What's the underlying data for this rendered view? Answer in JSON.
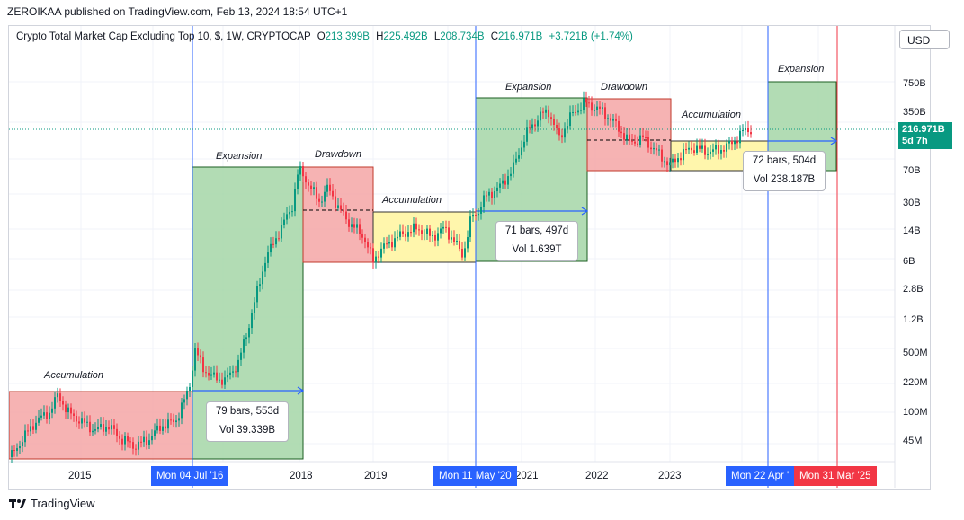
{
  "header": {
    "published": "ZEROIKAA published on TradingView.com, Feb 13, 2024 18:54 UTC+1"
  },
  "legend": {
    "title": "Crypto Total Market Cap Excluding Top 10, $, 1W, CRYPTOCAP",
    "o_label": "O",
    "o_value": "213.399B",
    "h_label": "H",
    "h_value": "225.492B",
    "l_label": "L",
    "l_value": "208.734B",
    "c_label": "C",
    "c_value": "216.971B",
    "change": "+3.721B (+1.74%)"
  },
  "currency_button": "USD",
  "price_axis": {
    "labels": [
      "750B",
      "350B",
      "70B",
      "30B",
      "14B",
      "6B",
      "2.8B",
      "1.2B",
      "500M",
      "220M",
      "100M",
      "45M"
    ],
    "current_price": "216.971B",
    "countdown": "5d 7h"
  },
  "time_axis": {
    "labels": [
      "2015",
      "2018",
      "2019",
      "2021",
      "2022",
      "2023"
    ],
    "highlighted": [
      "Mon 04 Jul '16",
      "Mon 11 May '20",
      "Mon 22 Apr '",
      "Mon 31 Mar '25"
    ]
  },
  "phases": [
    {
      "label": "Accumulation",
      "color": "#f4a6a6"
    },
    {
      "label": "Expansion",
      "color": "#a5d6a7"
    },
    {
      "label": "Drawdown",
      "color": "#f4a6a6"
    },
    {
      "label": "Accumulation",
      "color": "#fff59d"
    },
    {
      "label": "Expansion",
      "color": "#a5d6a7"
    },
    {
      "label": "Drawdown",
      "color": "#f4a6a6"
    },
    {
      "label": "Accumulation",
      "color": "#fff59d"
    },
    {
      "label": "Expansion",
      "color": "#a5d6a7"
    }
  ],
  "stat_boxes": [
    {
      "bars": "79 bars, 553d",
      "vol": "Vol 39.339B"
    },
    {
      "bars": "71 bars, 497d",
      "vol": "Vol 1.639T"
    },
    {
      "bars": "72 bars, 504d",
      "vol": "Vol 238.187B"
    }
  ],
  "colors": {
    "up": "#089981",
    "down": "#f23645",
    "blue_line": "#2962ff",
    "red_line": "#f23645"
  },
  "branding": "TradingView"
}
